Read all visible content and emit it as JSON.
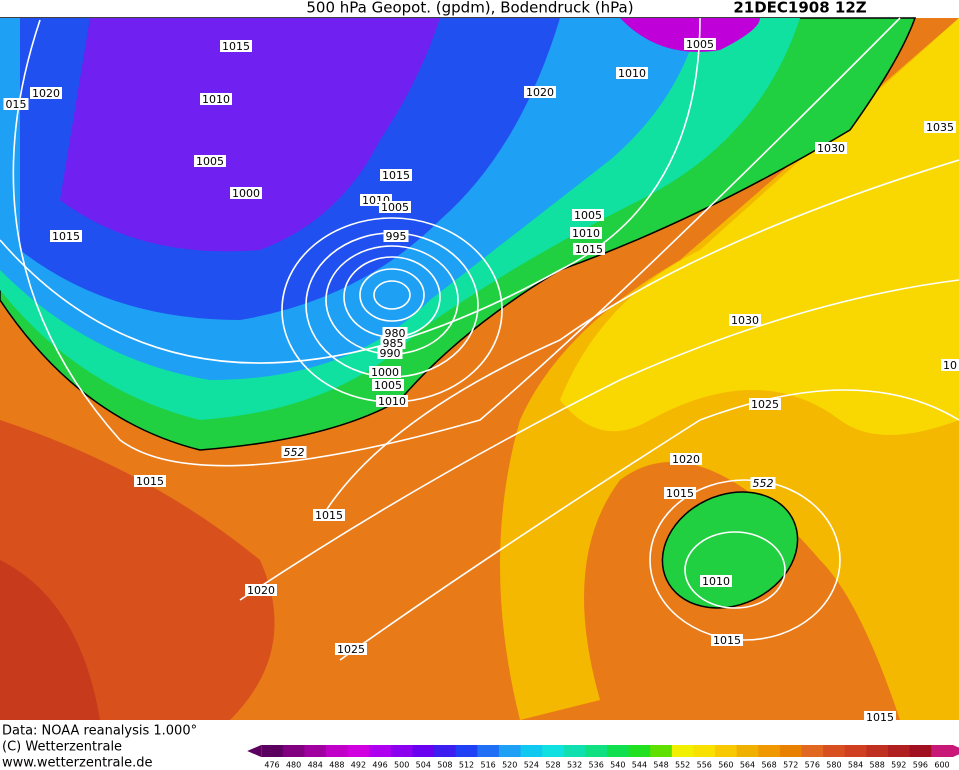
{
  "title": "500 hPa Geopot. (gpdm), Bodendruck (hPa)",
  "date": "21DEC1908 12Z",
  "isobar_labels": [
    "1015",
    "015",
    "1020",
    "1010",
    "1005",
    "1000",
    "1015",
    "1015",
    "1010",
    "1005",
    "995",
    "980",
    "985",
    "990",
    "1000",
    "1005",
    "1010",
    "552",
    "1015",
    "1015",
    "1020",
    "1025",
    "1020",
    "1010",
    "1005",
    "1005",
    "1010",
    "1015",
    "1030",
    "1035",
    "1030",
    "1025",
    "1020",
    "1015",
    "552",
    "1010",
    "1015",
    "1015",
    "10"
  ],
  "footer": [
    "Data: NOAA reanalysis 1.000°",
    "(C) Wetterzentrale",
    "www.wetterzentrale.de"
  ],
  "legend": {
    "levels": [
      476,
      480,
      484,
      488,
      492,
      496,
      500,
      504,
      508,
      512,
      516,
      520,
      524,
      528,
      532,
      536,
      540,
      544,
      548,
      552,
      556,
      560,
      564,
      568,
      572,
      576,
      580,
      584,
      588,
      592,
      596,
      600
    ],
    "colors": [
      "#5c0060",
      "#800080",
      "#a000a0",
      "#c000c8",
      "#d000e0",
      "#b000f0",
      "#8c00f0",
      "#6a00f0",
      "#3c1ef0",
      "#2040f5",
      "#2070f5",
      "#1ea0f5",
      "#10c8f0",
      "#10e0e0",
      "#10e0b0",
      "#10e080",
      "#10e050",
      "#20e020",
      "#60e000",
      "#f0f000",
      "#f8e000",
      "#f8c800",
      "#f0b000",
      "#f09800",
      "#e88000",
      "#e06820",
      "#d85020",
      "#d04020",
      "#c03020",
      "#b02020",
      "#a01020",
      "#c81878"
    ]
  }
}
